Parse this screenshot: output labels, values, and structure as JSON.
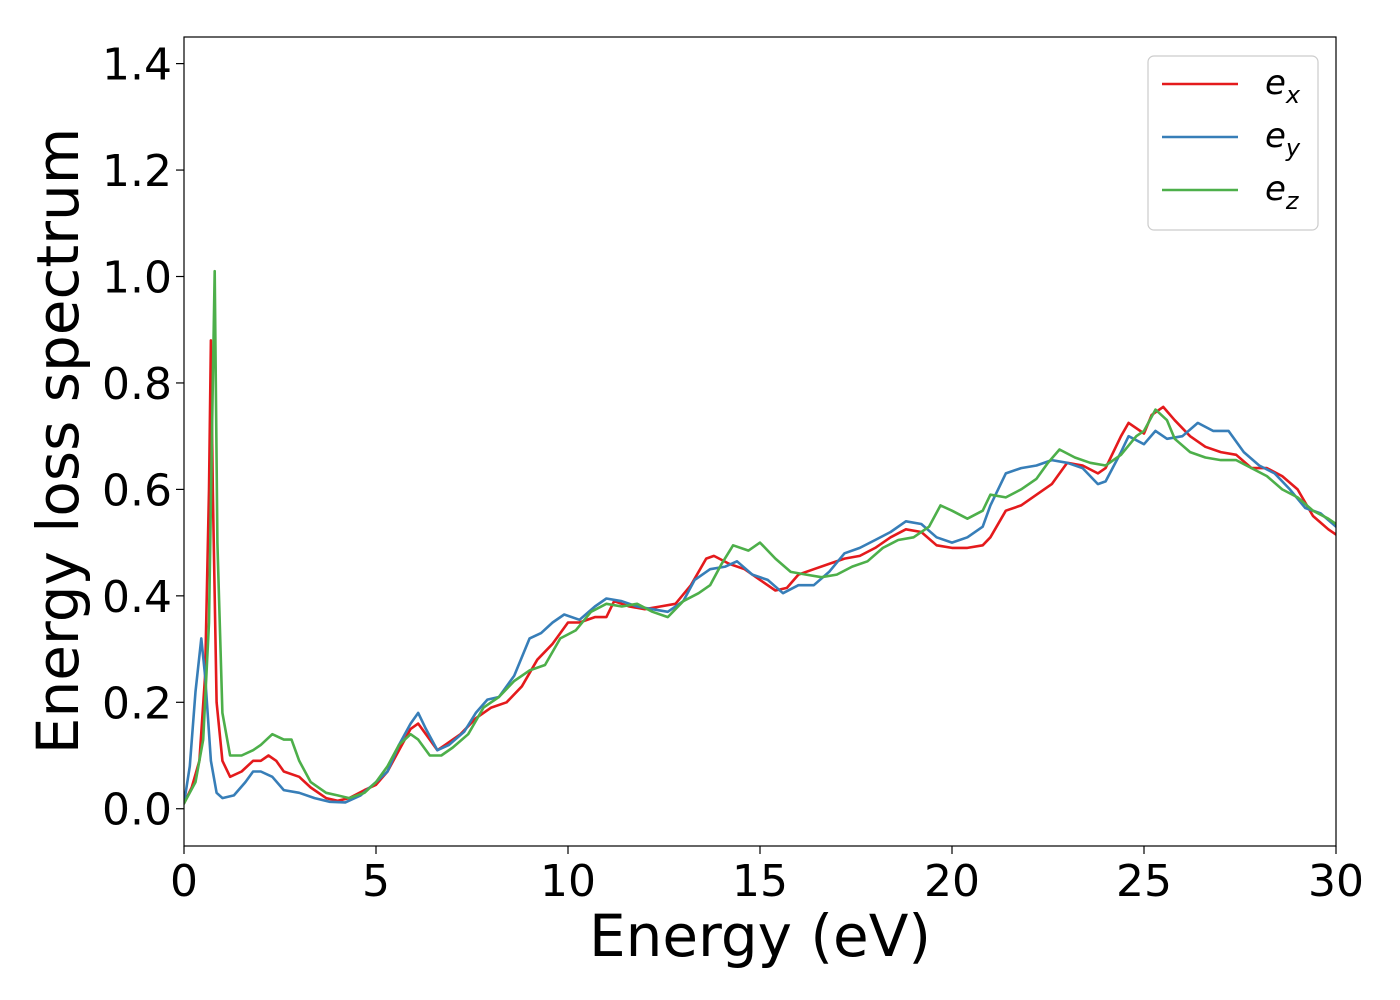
{
  "chart_data": {
    "type": "line",
    "xlabel": "Energy (eV)",
    "ylabel": "Energy loss spectrum",
    "xlim": [
      0,
      30
    ],
    "ylim": [
      -0.07,
      1.45
    ],
    "xticks": [
      "0",
      "5",
      "10",
      "15",
      "20",
      "25",
      "30"
    ],
    "yticks": [
      "0.0",
      "0.2",
      "0.4",
      "0.6",
      "0.8",
      "1.0",
      "1.2",
      "1.4"
    ],
    "grid": false,
    "legend_position": "top-right",
    "series": [
      {
        "name": "e",
        "subscript": "x",
        "color": "#e41a1c",
        "points": [
          [
            0,
            0.01
          ],
          [
            0.2,
            0.04
          ],
          [
            0.4,
            0.09
          ],
          [
            0.55,
            0.25
          ],
          [
            0.65,
            0.6
          ],
          [
            0.7,
            0.88
          ],
          [
            0.75,
            0.6
          ],
          [
            0.85,
            0.2
          ],
          [
            1.0,
            0.09
          ],
          [
            1.2,
            0.06
          ],
          [
            1.5,
            0.07
          ],
          [
            1.8,
            0.09
          ],
          [
            2.0,
            0.09
          ],
          [
            2.2,
            0.1
          ],
          [
            2.4,
            0.09
          ],
          [
            2.6,
            0.07
          ],
          [
            3.0,
            0.06
          ],
          [
            3.3,
            0.04
          ],
          [
            3.7,
            0.02
          ],
          [
            4.0,
            0.015
          ],
          [
            4.3,
            0.02
          ],
          [
            4.7,
            0.035
          ],
          [
            5.0,
            0.045
          ],
          [
            5.3,
            0.07
          ],
          [
            5.6,
            0.11
          ],
          [
            5.9,
            0.15
          ],
          [
            6.1,
            0.16
          ],
          [
            6.3,
            0.14
          ],
          [
            6.6,
            0.11
          ],
          [
            6.8,
            0.12
          ],
          [
            7.2,
            0.14
          ],
          [
            7.6,
            0.17
          ],
          [
            8.0,
            0.19
          ],
          [
            8.4,
            0.2
          ],
          [
            8.8,
            0.23
          ],
          [
            9.2,
            0.28
          ],
          [
            9.6,
            0.31
          ],
          [
            10.0,
            0.35
          ],
          [
            10.3,
            0.35
          ],
          [
            10.7,
            0.36
          ],
          [
            11.0,
            0.36
          ],
          [
            11.2,
            0.39
          ],
          [
            11.6,
            0.38
          ],
          [
            12.0,
            0.375
          ],
          [
            12.4,
            0.38
          ],
          [
            12.8,
            0.385
          ],
          [
            13.2,
            0.42
          ],
          [
            13.6,
            0.47
          ],
          [
            13.8,
            0.475
          ],
          [
            14.2,
            0.46
          ],
          [
            14.6,
            0.45
          ],
          [
            15.0,
            0.43
          ],
          [
            15.4,
            0.41
          ],
          [
            15.7,
            0.415
          ],
          [
            16.0,
            0.44
          ],
          [
            16.4,
            0.45
          ],
          [
            16.8,
            0.46
          ],
          [
            17.2,
            0.47
          ],
          [
            17.6,
            0.475
          ],
          [
            18.0,
            0.49
          ],
          [
            18.4,
            0.51
          ],
          [
            18.8,
            0.525
          ],
          [
            19.2,
            0.52
          ],
          [
            19.6,
            0.495
          ],
          [
            20.0,
            0.49
          ],
          [
            20.4,
            0.49
          ],
          [
            20.8,
            0.495
          ],
          [
            21.0,
            0.51
          ],
          [
            21.4,
            0.56
          ],
          [
            21.8,
            0.57
          ],
          [
            22.2,
            0.59
          ],
          [
            22.6,
            0.61
          ],
          [
            23.0,
            0.65
          ],
          [
            23.4,
            0.645
          ],
          [
            23.8,
            0.63
          ],
          [
            24.0,
            0.64
          ],
          [
            24.4,
            0.7
          ],
          [
            24.6,
            0.725
          ],
          [
            25.0,
            0.705
          ],
          [
            25.2,
            0.74
          ],
          [
            25.5,
            0.755
          ],
          [
            25.8,
            0.73
          ],
          [
            26.2,
            0.7
          ],
          [
            26.6,
            0.68
          ],
          [
            27.0,
            0.67
          ],
          [
            27.4,
            0.665
          ],
          [
            27.8,
            0.64
          ],
          [
            28.2,
            0.64
          ],
          [
            28.6,
            0.625
          ],
          [
            29.0,
            0.6
          ],
          [
            29.4,
            0.55
          ],
          [
            29.8,
            0.525
          ],
          [
            30.0,
            0.515
          ]
        ]
      },
      {
        "name": "e",
        "subscript": "y",
        "color": "#377eb8",
        "points": [
          [
            0,
            0.01
          ],
          [
            0.15,
            0.08
          ],
          [
            0.3,
            0.22
          ],
          [
            0.45,
            0.32
          ],
          [
            0.55,
            0.25
          ],
          [
            0.7,
            0.09
          ],
          [
            0.85,
            0.03
          ],
          [
            1.0,
            0.02
          ],
          [
            1.3,
            0.025
          ],
          [
            1.6,
            0.05
          ],
          [
            1.8,
            0.07
          ],
          [
            2.0,
            0.07
          ],
          [
            2.3,
            0.06
          ],
          [
            2.6,
            0.035
          ],
          [
            3.0,
            0.03
          ],
          [
            3.4,
            0.02
          ],
          [
            3.8,
            0.013
          ],
          [
            4.2,
            0.012
          ],
          [
            4.6,
            0.025
          ],
          [
            5.0,
            0.05
          ],
          [
            5.3,
            0.07
          ],
          [
            5.6,
            0.12
          ],
          [
            5.9,
            0.16
          ],
          [
            6.1,
            0.18
          ],
          [
            6.3,
            0.15
          ],
          [
            6.6,
            0.11
          ],
          [
            6.9,
            0.12
          ],
          [
            7.3,
            0.145
          ],
          [
            7.6,
            0.18
          ],
          [
            7.9,
            0.205
          ],
          [
            8.2,
            0.21
          ],
          [
            8.6,
            0.25
          ],
          [
            9.0,
            0.32
          ],
          [
            9.3,
            0.33
          ],
          [
            9.6,
            0.35
          ],
          [
            9.9,
            0.365
          ],
          [
            10.3,
            0.355
          ],
          [
            10.7,
            0.38
          ],
          [
            11.0,
            0.395
          ],
          [
            11.4,
            0.39
          ],
          [
            11.8,
            0.38
          ],
          [
            12.2,
            0.375
          ],
          [
            12.6,
            0.37
          ],
          [
            13.0,
            0.39
          ],
          [
            13.3,
            0.43
          ],
          [
            13.7,
            0.45
          ],
          [
            14.1,
            0.455
          ],
          [
            14.4,
            0.465
          ],
          [
            14.8,
            0.44
          ],
          [
            15.2,
            0.43
          ],
          [
            15.6,
            0.405
          ],
          [
            16.0,
            0.42
          ],
          [
            16.4,
            0.42
          ],
          [
            16.8,
            0.445
          ],
          [
            17.2,
            0.48
          ],
          [
            17.6,
            0.49
          ],
          [
            18.0,
            0.505
          ],
          [
            18.4,
            0.52
          ],
          [
            18.8,
            0.54
          ],
          [
            19.2,
            0.535
          ],
          [
            19.6,
            0.51
          ],
          [
            20.0,
            0.5
          ],
          [
            20.4,
            0.51
          ],
          [
            20.8,
            0.53
          ],
          [
            21.0,
            0.57
          ],
          [
            21.4,
            0.63
          ],
          [
            21.8,
            0.64
          ],
          [
            22.2,
            0.645
          ],
          [
            22.6,
            0.655
          ],
          [
            23.0,
            0.65
          ],
          [
            23.4,
            0.64
          ],
          [
            23.8,
            0.61
          ],
          [
            24.0,
            0.615
          ],
          [
            24.4,
            0.67
          ],
          [
            24.6,
            0.7
          ],
          [
            25.0,
            0.685
          ],
          [
            25.3,
            0.71
          ],
          [
            25.6,
            0.695
          ],
          [
            26.0,
            0.7
          ],
          [
            26.4,
            0.725
          ],
          [
            26.8,
            0.71
          ],
          [
            27.2,
            0.71
          ],
          [
            27.6,
            0.67
          ],
          [
            28.0,
            0.645
          ],
          [
            28.4,
            0.63
          ],
          [
            28.8,
            0.6
          ],
          [
            29.2,
            0.565
          ],
          [
            29.6,
            0.555
          ],
          [
            30.0,
            0.53
          ]
        ]
      },
      {
        "name": "e",
        "subscript": "z",
        "color": "#4daf4a",
        "points": [
          [
            0,
            0.01
          ],
          [
            0.3,
            0.05
          ],
          [
            0.5,
            0.13
          ],
          [
            0.65,
            0.35
          ],
          [
            0.75,
            0.8
          ],
          [
            0.8,
            1.01
          ],
          [
            0.87,
            0.5
          ],
          [
            1.0,
            0.18
          ],
          [
            1.2,
            0.1
          ],
          [
            1.5,
            0.1
          ],
          [
            1.8,
            0.11
          ],
          [
            2.0,
            0.12
          ],
          [
            2.3,
            0.14
          ],
          [
            2.6,
            0.13
          ],
          [
            2.8,
            0.13
          ],
          [
            3.0,
            0.09
          ],
          [
            3.3,
            0.05
          ],
          [
            3.7,
            0.03
          ],
          [
            4.0,
            0.025
          ],
          [
            4.3,
            0.02
          ],
          [
            4.7,
            0.03
          ],
          [
            5.0,
            0.05
          ],
          [
            5.3,
            0.08
          ],
          [
            5.6,
            0.12
          ],
          [
            5.9,
            0.14
          ],
          [
            6.1,
            0.13
          ],
          [
            6.4,
            0.1
          ],
          [
            6.7,
            0.1
          ],
          [
            7.0,
            0.115
          ],
          [
            7.4,
            0.14
          ],
          [
            7.8,
            0.19
          ],
          [
            8.2,
            0.21
          ],
          [
            8.6,
            0.24
          ],
          [
            9.0,
            0.26
          ],
          [
            9.4,
            0.27
          ],
          [
            9.8,
            0.32
          ],
          [
            10.2,
            0.335
          ],
          [
            10.6,
            0.37
          ],
          [
            11.0,
            0.385
          ],
          [
            11.4,
            0.38
          ],
          [
            11.8,
            0.385
          ],
          [
            12.2,
            0.37
          ],
          [
            12.6,
            0.36
          ],
          [
            13.0,
            0.39
          ],
          [
            13.4,
            0.405
          ],
          [
            13.7,
            0.42
          ],
          [
            14.0,
            0.46
          ],
          [
            14.3,
            0.495
          ],
          [
            14.7,
            0.485
          ],
          [
            15.0,
            0.5
          ],
          [
            15.4,
            0.47
          ],
          [
            15.8,
            0.445
          ],
          [
            16.2,
            0.44
          ],
          [
            16.6,
            0.435
          ],
          [
            17.0,
            0.44
          ],
          [
            17.4,
            0.455
          ],
          [
            17.8,
            0.465
          ],
          [
            18.2,
            0.49
          ],
          [
            18.6,
            0.505
          ],
          [
            19.0,
            0.51
          ],
          [
            19.4,
            0.53
          ],
          [
            19.7,
            0.57
          ],
          [
            20.0,
            0.56
          ],
          [
            20.4,
            0.545
          ],
          [
            20.8,
            0.56
          ],
          [
            21.0,
            0.59
          ],
          [
            21.4,
            0.585
          ],
          [
            21.8,
            0.6
          ],
          [
            22.2,
            0.62
          ],
          [
            22.5,
            0.65
          ],
          [
            22.8,
            0.675
          ],
          [
            23.2,
            0.66
          ],
          [
            23.6,
            0.65
          ],
          [
            24.0,
            0.645
          ],
          [
            24.4,
            0.665
          ],
          [
            24.8,
            0.7
          ],
          [
            25.0,
            0.71
          ],
          [
            25.3,
            0.75
          ],
          [
            25.6,
            0.73
          ],
          [
            25.8,
            0.695
          ],
          [
            26.2,
            0.67
          ],
          [
            26.6,
            0.66
          ],
          [
            27.0,
            0.655
          ],
          [
            27.4,
            0.655
          ],
          [
            27.8,
            0.64
          ],
          [
            28.2,
            0.625
          ],
          [
            28.6,
            0.6
          ],
          [
            29.0,
            0.585
          ],
          [
            29.4,
            0.56
          ],
          [
            29.8,
            0.545
          ],
          [
            30.0,
            0.535
          ]
        ]
      }
    ]
  }
}
